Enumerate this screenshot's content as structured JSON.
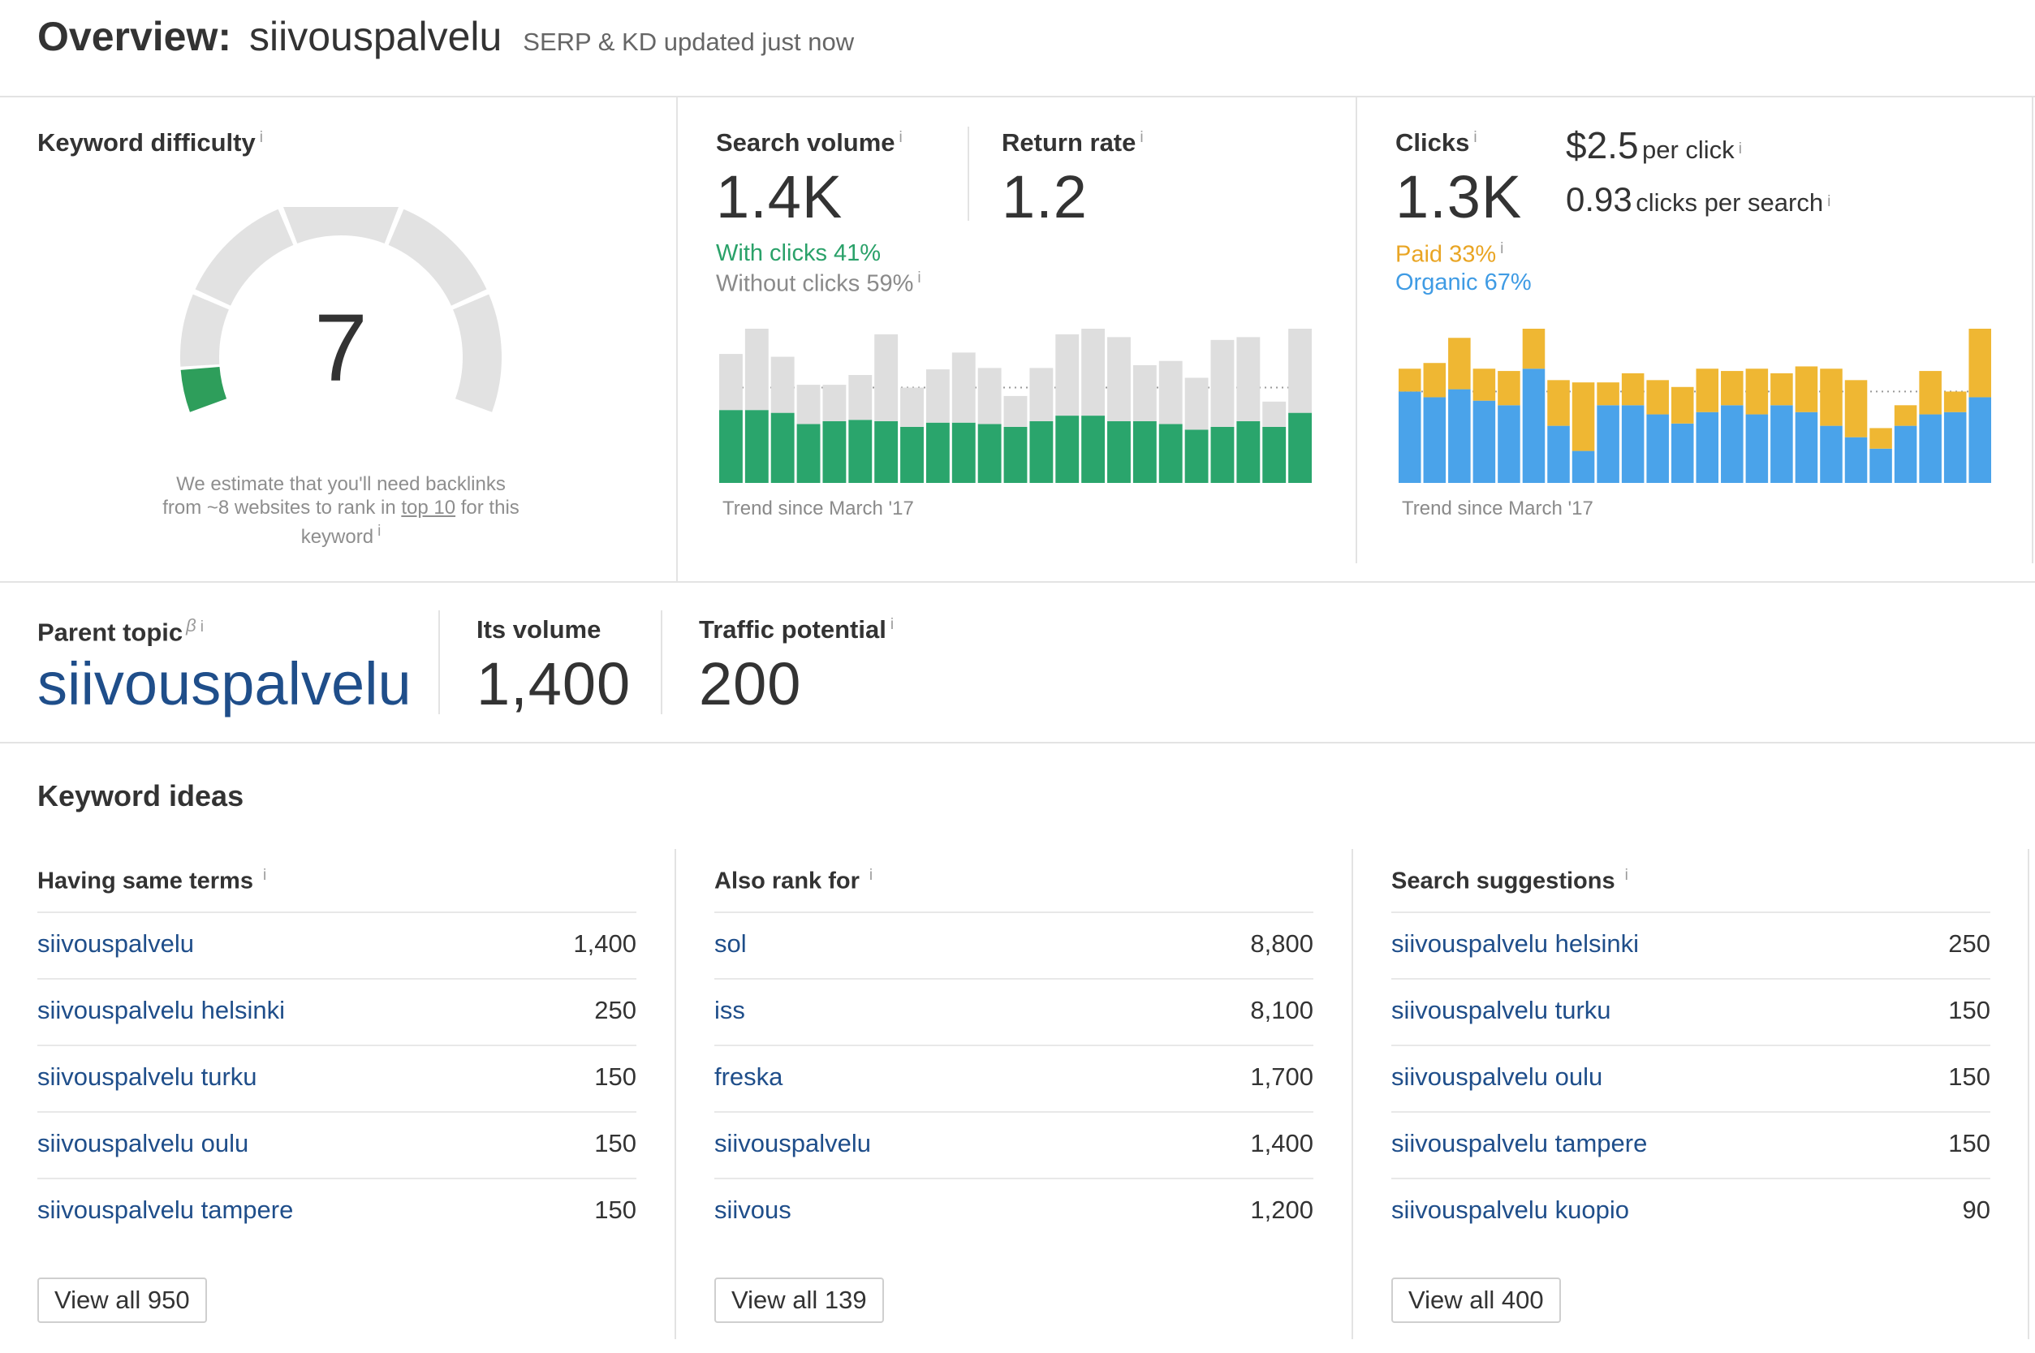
{
  "header": {
    "title": "Overview:",
    "keyword": "siivouspalvelu",
    "status": "SERP & KD updated just now"
  },
  "keyword_difficulty": {
    "title": "Keyword difficulty",
    "value": "7",
    "score": 7,
    "max": 100,
    "estimate_text_1": "We estimate that you'll need backlinks",
    "estimate_text_2a": "from ~8 websites to rank in",
    "estimate_link": "top 10",
    "estimate_text_2b": "for this",
    "estimate_text_3": "keyword",
    "colors": {
      "fill": "#2e9e5b",
      "track": "#e2e2e2"
    }
  },
  "search_volume": {
    "title": "Search volume",
    "value": "1.4K",
    "with_clicks": "With clicks 41%",
    "without_clicks": "Without clicks 59%",
    "trend_caption": "Trend since March '17"
  },
  "return_rate": {
    "title": "Return rate",
    "value": "1.2"
  },
  "clicks": {
    "title": "Clicks",
    "value": "1.3K",
    "cpc_value": "$2.5",
    "cpc_label": "per click",
    "cps_value": "0.93",
    "cps_label": "clicks per search",
    "paid": "Paid 33%",
    "organic": "Organic 67%",
    "trend_caption": "Trend since March '17"
  },
  "parent_topic": {
    "title": "Parent topic",
    "beta": "β",
    "keyword": "siivouspalvelu",
    "volume_title": "Its volume",
    "volume": "1,400",
    "traffic_title": "Traffic potential",
    "traffic": "200"
  },
  "keyword_ideas": {
    "title": "Keyword ideas",
    "columns": [
      {
        "title": "Having same terms",
        "rows": [
          {
            "keyword": "siivouspalvelu",
            "volume": "1,400"
          },
          {
            "keyword": "siivouspalvelu helsinki",
            "volume": "250"
          },
          {
            "keyword": "siivouspalvelu turku",
            "volume": "150"
          },
          {
            "keyword": "siivouspalvelu oulu",
            "volume": "150"
          },
          {
            "keyword": "siivouspalvelu tampere",
            "volume": "150"
          }
        ],
        "button": "View all 950"
      },
      {
        "title": "Also rank for",
        "rows": [
          {
            "keyword": "sol",
            "volume": "8,800"
          },
          {
            "keyword": "iss",
            "volume": "8,100"
          },
          {
            "keyword": "freska",
            "volume": "1,700"
          },
          {
            "keyword": "siivouspalvelu",
            "volume": "1,400"
          },
          {
            "keyword": "siivous",
            "volume": "1,200"
          }
        ],
        "button": "View all 139"
      },
      {
        "title": "Search suggestions",
        "rows": [
          {
            "keyword": "siivouspalvelu helsinki",
            "volume": "250"
          },
          {
            "keyword": "siivouspalvelu turku",
            "volume": "150"
          },
          {
            "keyword": "siivouspalvelu oulu",
            "volume": "150"
          },
          {
            "keyword": "siivouspalvelu tampere",
            "volume": "150"
          },
          {
            "keyword": "siivouspalvelu kuopio",
            "volume": "90"
          }
        ],
        "button": "View all 400"
      }
    ]
  },
  "chart_data": [
    {
      "type": "bar",
      "series": [
        {
          "values": [
            52,
            52,
            50,
            42,
            44,
            45,
            44,
            40,
            43,
            43,
            42,
            40,
            44,
            48,
            48,
            44,
            44,
            42,
            38,
            40,
            44,
            40,
            50
          ]
        },
        {
          "values": [
            40,
            60,
            40,
            28,
            26,
            32,
            62,
            28,
            38,
            50,
            40,
            22,
            38,
            58,
            70,
            60,
            40,
            45,
            37,
            62,
            60,
            18,
            86
          ]
        }
      ],
      "max": 110,
      "dotted_line_value": 68,
      "colors": [
        "#2aa56c",
        "#dedede"
      ]
    },
    {
      "type": "bar",
      "series": [
        {
          "values": [
            80,
            75,
            82,
            72,
            68,
            100,
            50,
            28,
            68,
            68,
            60,
            52,
            62,
            68,
            60,
            68,
            62,
            50,
            40,
            30,
            50,
            60,
            62,
            75
          ]
        },
        {
          "values": [
            20,
            30,
            45,
            28,
            30,
            45,
            40,
            60,
            20,
            28,
            30,
            32,
            38,
            30,
            40,
            28,
            40,
            50,
            50,
            18,
            18,
            38,
            18,
            60
          ]
        }
      ],
      "max": 135,
      "dotted_line_value": 80,
      "colors": [
        "#4aa3ea",
        "#efb733"
      ]
    }
  ]
}
